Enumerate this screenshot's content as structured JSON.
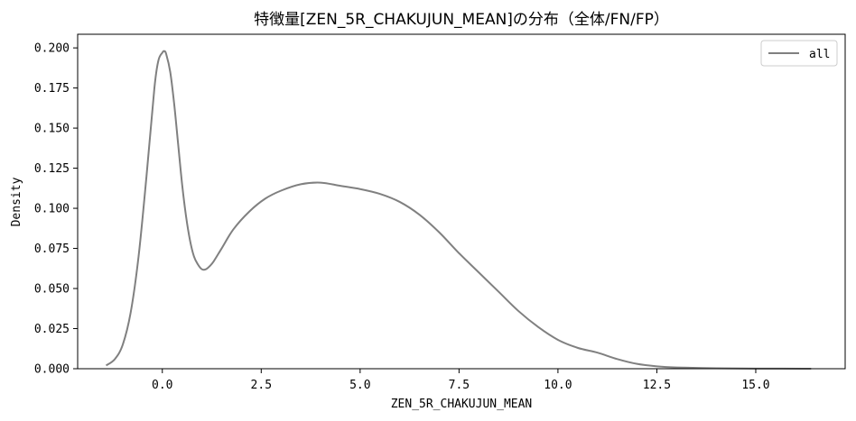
{
  "chart_data": {
    "type": "line",
    "title": "特徴量[ZEN_5R_CHAKUJUN_MEAN]の分布（全体/FN/FP）",
    "xlabel": "ZEN_5R_CHAKUJUN_MEAN",
    "ylabel": "Density",
    "xlim": [
      -2.14,
      17.26
    ],
    "ylim": [
      0,
      0.2085
    ],
    "xticks": [
      0.0,
      2.5,
      5.0,
      7.5,
      10.0,
      12.5,
      15.0
    ],
    "xtick_labels": [
      "0.0",
      "2.5",
      "5.0",
      "7.5",
      "10.0",
      "12.5",
      "15.0"
    ],
    "yticks": [
      0.0,
      0.025,
      0.05,
      0.075,
      0.1,
      0.125,
      0.15,
      0.175,
      0.2
    ],
    "ytick_labels": [
      "0.000",
      "0.025",
      "0.050",
      "0.075",
      "0.100",
      "0.125",
      "0.150",
      "0.175",
      "0.200"
    ],
    "grid": false,
    "legend_position": "top-right",
    "series": [
      {
        "name": "all",
        "color": "#808080",
        "x": [
          -1.42,
          -1.2,
          -1.0,
          -0.8,
          -0.6,
          -0.4,
          -0.2,
          -0.1,
          0.0,
          0.05,
          0.1,
          0.2,
          0.3,
          0.4,
          0.5,
          0.6,
          0.7,
          0.8,
          0.9,
          1.0,
          1.1,
          1.2,
          1.3,
          1.5,
          1.8,
          2.2,
          2.6,
          3.0,
          3.5,
          4.0,
          4.5,
          5.0,
          5.5,
          6.0,
          6.5,
          7.0,
          7.5,
          8.0,
          8.5,
          9.0,
          9.5,
          10.0,
          10.5,
          11.0,
          11.5,
          12.0,
          12.5,
          13.0,
          14.0,
          15.0,
          16.4
        ],
        "y": [
          0.002,
          0.006,
          0.015,
          0.035,
          0.07,
          0.12,
          0.175,
          0.192,
          0.197,
          0.198,
          0.196,
          0.185,
          0.165,
          0.14,
          0.115,
          0.095,
          0.08,
          0.07,
          0.065,
          0.062,
          0.062,
          0.064,
          0.067,
          0.075,
          0.087,
          0.098,
          0.106,
          0.111,
          0.115,
          0.116,
          0.114,
          0.112,
          0.109,
          0.104,
          0.096,
          0.085,
          0.072,
          0.06,
          0.048,
          0.036,
          0.026,
          0.018,
          0.013,
          0.01,
          0.006,
          0.003,
          0.0015,
          0.0008,
          0.0003,
          0.0001,
          0.0
        ]
      }
    ]
  }
}
